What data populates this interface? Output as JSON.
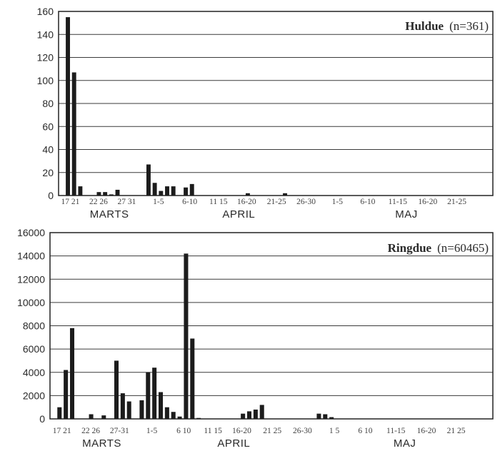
{
  "chart_data": [
    {
      "type": "bar",
      "title": "Huldue",
      "subtitle": "(n=361)",
      "ylim": [
        0,
        160
      ],
      "yticks": [
        0,
        20,
        40,
        60,
        80,
        100,
        120,
        140,
        160
      ],
      "grid": true,
      "x_tick_labels": [
        "17 21",
        "22 26",
        "27 31",
        "1-5",
        "6-10",
        "11 15",
        "16-20",
        "21-25",
        "26-30",
        "1-5",
        "6-10",
        "11-15",
        "16-20",
        "21-25"
      ],
      "months": [
        "MARTS",
        "APRIL",
        "MAJ"
      ],
      "categories": [
        "17",
        "18",
        "19",
        "20",
        "21",
        "22",
        "23",
        "24",
        "25",
        "26",
        "27",
        "28",
        "29",
        "30",
        "31",
        "1",
        "2",
        "3",
        "4",
        "5",
        "6",
        "7",
        "8",
        "9",
        "10",
        "11",
        "12",
        "13",
        "14",
        "15",
        "16",
        "17",
        "18",
        "19",
        "20",
        "21",
        "22",
        "23",
        "24",
        "25",
        "26",
        "27",
        "28",
        "29",
        "30",
        "1",
        "2",
        "3",
        "4",
        "5",
        "6",
        "7",
        "8",
        "9",
        "10",
        "11",
        "12",
        "13",
        "14",
        "15",
        "16",
        "17",
        "18",
        "19",
        "20",
        "21",
        "22",
        "23",
        "24",
        "25"
      ],
      "values": [
        0,
        155,
        107,
        8,
        0,
        0,
        3,
        3,
        1,
        5,
        0,
        0,
        0,
        0,
        27,
        11,
        4,
        8,
        8,
        0,
        7,
        10,
        0,
        0,
        0,
        0,
        0,
        0,
        0,
        0,
        2,
        0,
        0,
        0,
        0,
        0,
        2,
        0,
        0,
        0,
        0,
        0,
        0,
        0,
        0,
        0,
        0,
        0,
        0,
        0,
        0,
        0,
        0,
        0,
        0,
        0,
        0,
        0,
        0,
        0,
        0,
        0,
        0,
        0,
        0,
        0,
        0,
        0,
        0,
        0
      ]
    },
    {
      "type": "bar",
      "title": "Ringdue",
      "subtitle": "(n=60465)",
      "ylim": [
        0,
        16000
      ],
      "yticks": [
        0,
        2000,
        4000,
        6000,
        8000,
        10000,
        12000,
        14000,
        16000
      ],
      "grid": true,
      "x_tick_labels": [
        "17 21",
        "22 26",
        "27-31",
        "1-5",
        "6 10",
        "11 15",
        "16-20",
        "21 25",
        "26-30",
        "1 5",
        "6 10",
        "11-15",
        "16-20",
        "21 25"
      ],
      "months": [
        "MARTS",
        "APRIL",
        "MAJ"
      ],
      "categories": [
        "17",
        "18",
        "19",
        "20",
        "21",
        "22",
        "23",
        "24",
        "25",
        "26",
        "27",
        "28",
        "29",
        "30",
        "31",
        "1",
        "2",
        "3",
        "4",
        "5",
        "6",
        "7",
        "8",
        "9",
        "10",
        "11",
        "12",
        "13",
        "14",
        "15",
        "16",
        "17",
        "18",
        "19",
        "20",
        "21",
        "22",
        "23",
        "24",
        "25",
        "26",
        "27",
        "28",
        "29",
        "30",
        "1",
        "2",
        "3",
        "4",
        "5",
        "6",
        "7",
        "8",
        "9",
        "10",
        "11",
        "12",
        "13",
        "14",
        "15",
        "16",
        "17",
        "18",
        "19",
        "20",
        "21",
        "22",
        "23",
        "24",
        "25"
      ],
      "values": [
        0,
        1000,
        4200,
        7800,
        0,
        0,
        400,
        0,
        300,
        0,
        5000,
        2200,
        1500,
        0,
        1600,
        4000,
        4400,
        2300,
        1000,
        600,
        200,
        14200,
        6900,
        80,
        0,
        0,
        0,
        0,
        0,
        0,
        450,
        650,
        800,
        1200,
        0,
        0,
        0,
        0,
        0,
        0,
        0,
        0,
        450,
        400,
        150,
        0,
        0,
        0,
        0,
        0,
        0,
        0,
        0,
        0,
        0,
        0,
        0,
        0,
        0,
        0,
        0,
        0,
        0,
        0,
        0,
        0,
        0,
        0,
        0,
        0
      ]
    }
  ]
}
